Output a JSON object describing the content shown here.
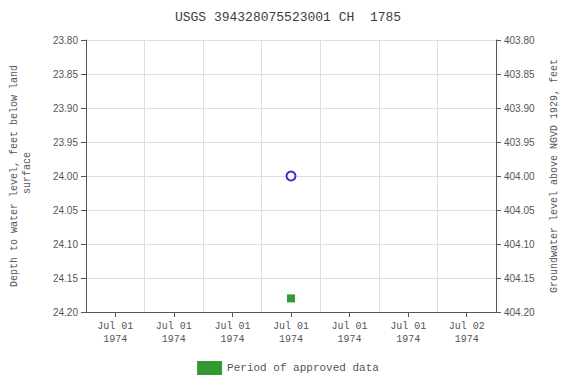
{
  "chart_data": {
    "type": "scatter",
    "title": "USGS 394328075523001 CH  1785",
    "ylabel": "Depth to water level, feet below land\n surface",
    "y2label": "Groundwater level above NGVD 1929, feet",
    "categories": [
      "Jul 01\n1974",
      "Jul 01\n1974",
      "Jul 01\n1974",
      "Jul 01\n1974",
      "Jul 01\n1974",
      "Jul 01\n1974",
      "Jul 02\n1974"
    ],
    "series": [
      {
        "color": "#0000cc",
        "marker": "open_circle",
        "values": [
          null,
          null,
          null,
          24.0,
          null,
          null,
          null
        ]
      },
      {
        "name": "Period of approved data",
        "color": "#008000",
        "marker": "square",
        "values": [
          null,
          null,
          null,
          24.18,
          null,
          null,
          null
        ]
      }
    ],
    "ylim": [
      24.2,
      23.8
    ],
    "yticks": [
      {
        "value": 23.8,
        "label": "23.80"
      },
      {
        "value": 23.85,
        "label": "23.85"
      },
      {
        "value": 23.9,
        "label": "23.90"
      },
      {
        "value": 23.95,
        "label": "23.95"
      },
      {
        "value": 24.0,
        "label": "24.00"
      },
      {
        "value": 24.05,
        "label": "24.05"
      },
      {
        "value": 24.1,
        "label": "24.10"
      },
      {
        "value": 24.15,
        "label": "24.15"
      },
      {
        "value": 24.2,
        "label": "24.20"
      }
    ],
    "y2lim": [
      404.2,
      403.8
    ],
    "y2ticks": [
      {
        "value": 404.2,
        "label": "404.20"
      },
      {
        "value": 404.15,
        "label": "404.15"
      },
      {
        "value": 404.1,
        "label": "404.10"
      },
      {
        "value": 404.05,
        "label": "404.05"
      },
      {
        "value": 404.0,
        "label": "404.00"
      },
      {
        "value": 403.95,
        "label": "403.95"
      },
      {
        "value": 403.9,
        "label": "403.90"
      },
      {
        "value": 403.85,
        "label": "403.85"
      },
      {
        "value": 403.8,
        "label": "403.80"
      }
    ],
    "grid": true,
    "legend": "bottom"
  }
}
